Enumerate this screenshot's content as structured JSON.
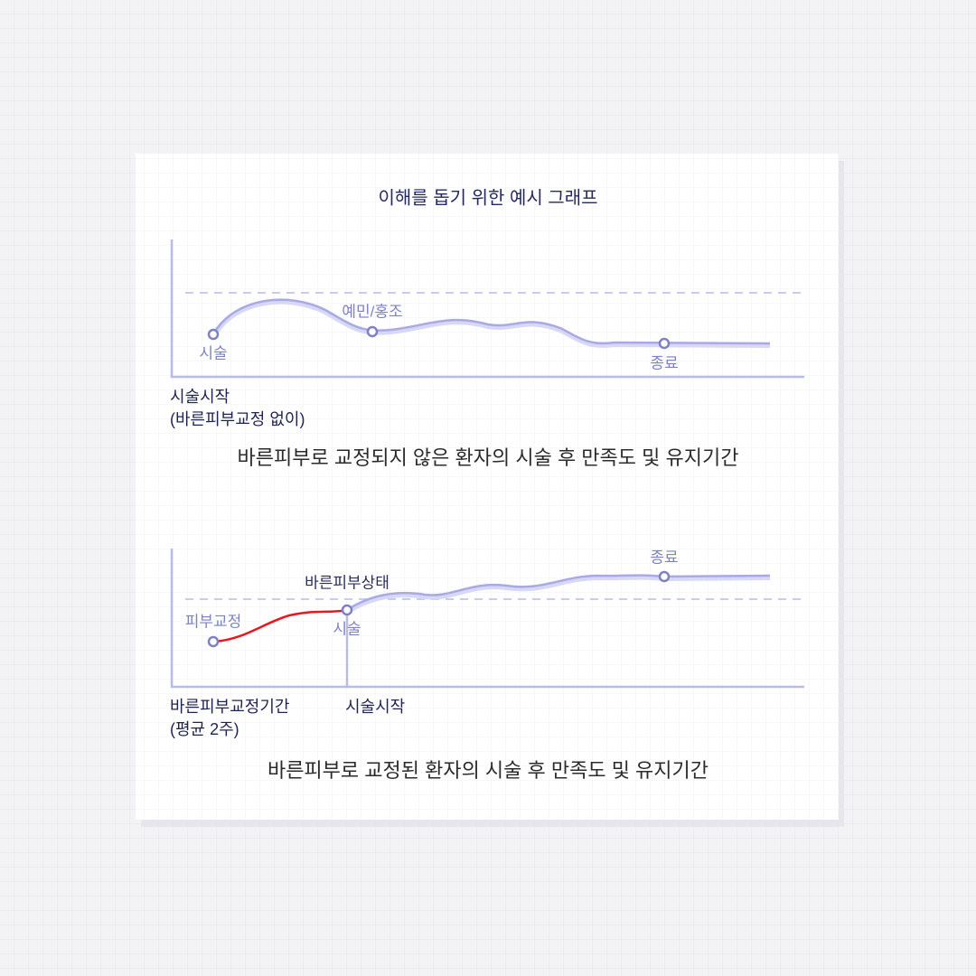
{
  "title": "이해를 돕기 위한 예시 그래프",
  "graph_without_correction": {
    "point_labels": [
      "시술",
      "예민/홍조",
      "종료"
    ],
    "axis_label": [
      "시술시작",
      "(바른피부교정 없이)"
    ],
    "caption": "바른피부로 교정되지 않은 환자의 시술 후 만족도 및 유지기간"
  },
  "graph_with_correction": {
    "point_labels": [
      "피부교정",
      "바른피부상태",
      "시술",
      "종료"
    ],
    "axis_labels": [
      [
        "바른피부교정기간",
        "(평균 2주)"
      ],
      [
        "시술시작"
      ]
    ],
    "caption": "바른피부로 교정된 환자의 시술 후 만족도 및 유지기간"
  }
}
